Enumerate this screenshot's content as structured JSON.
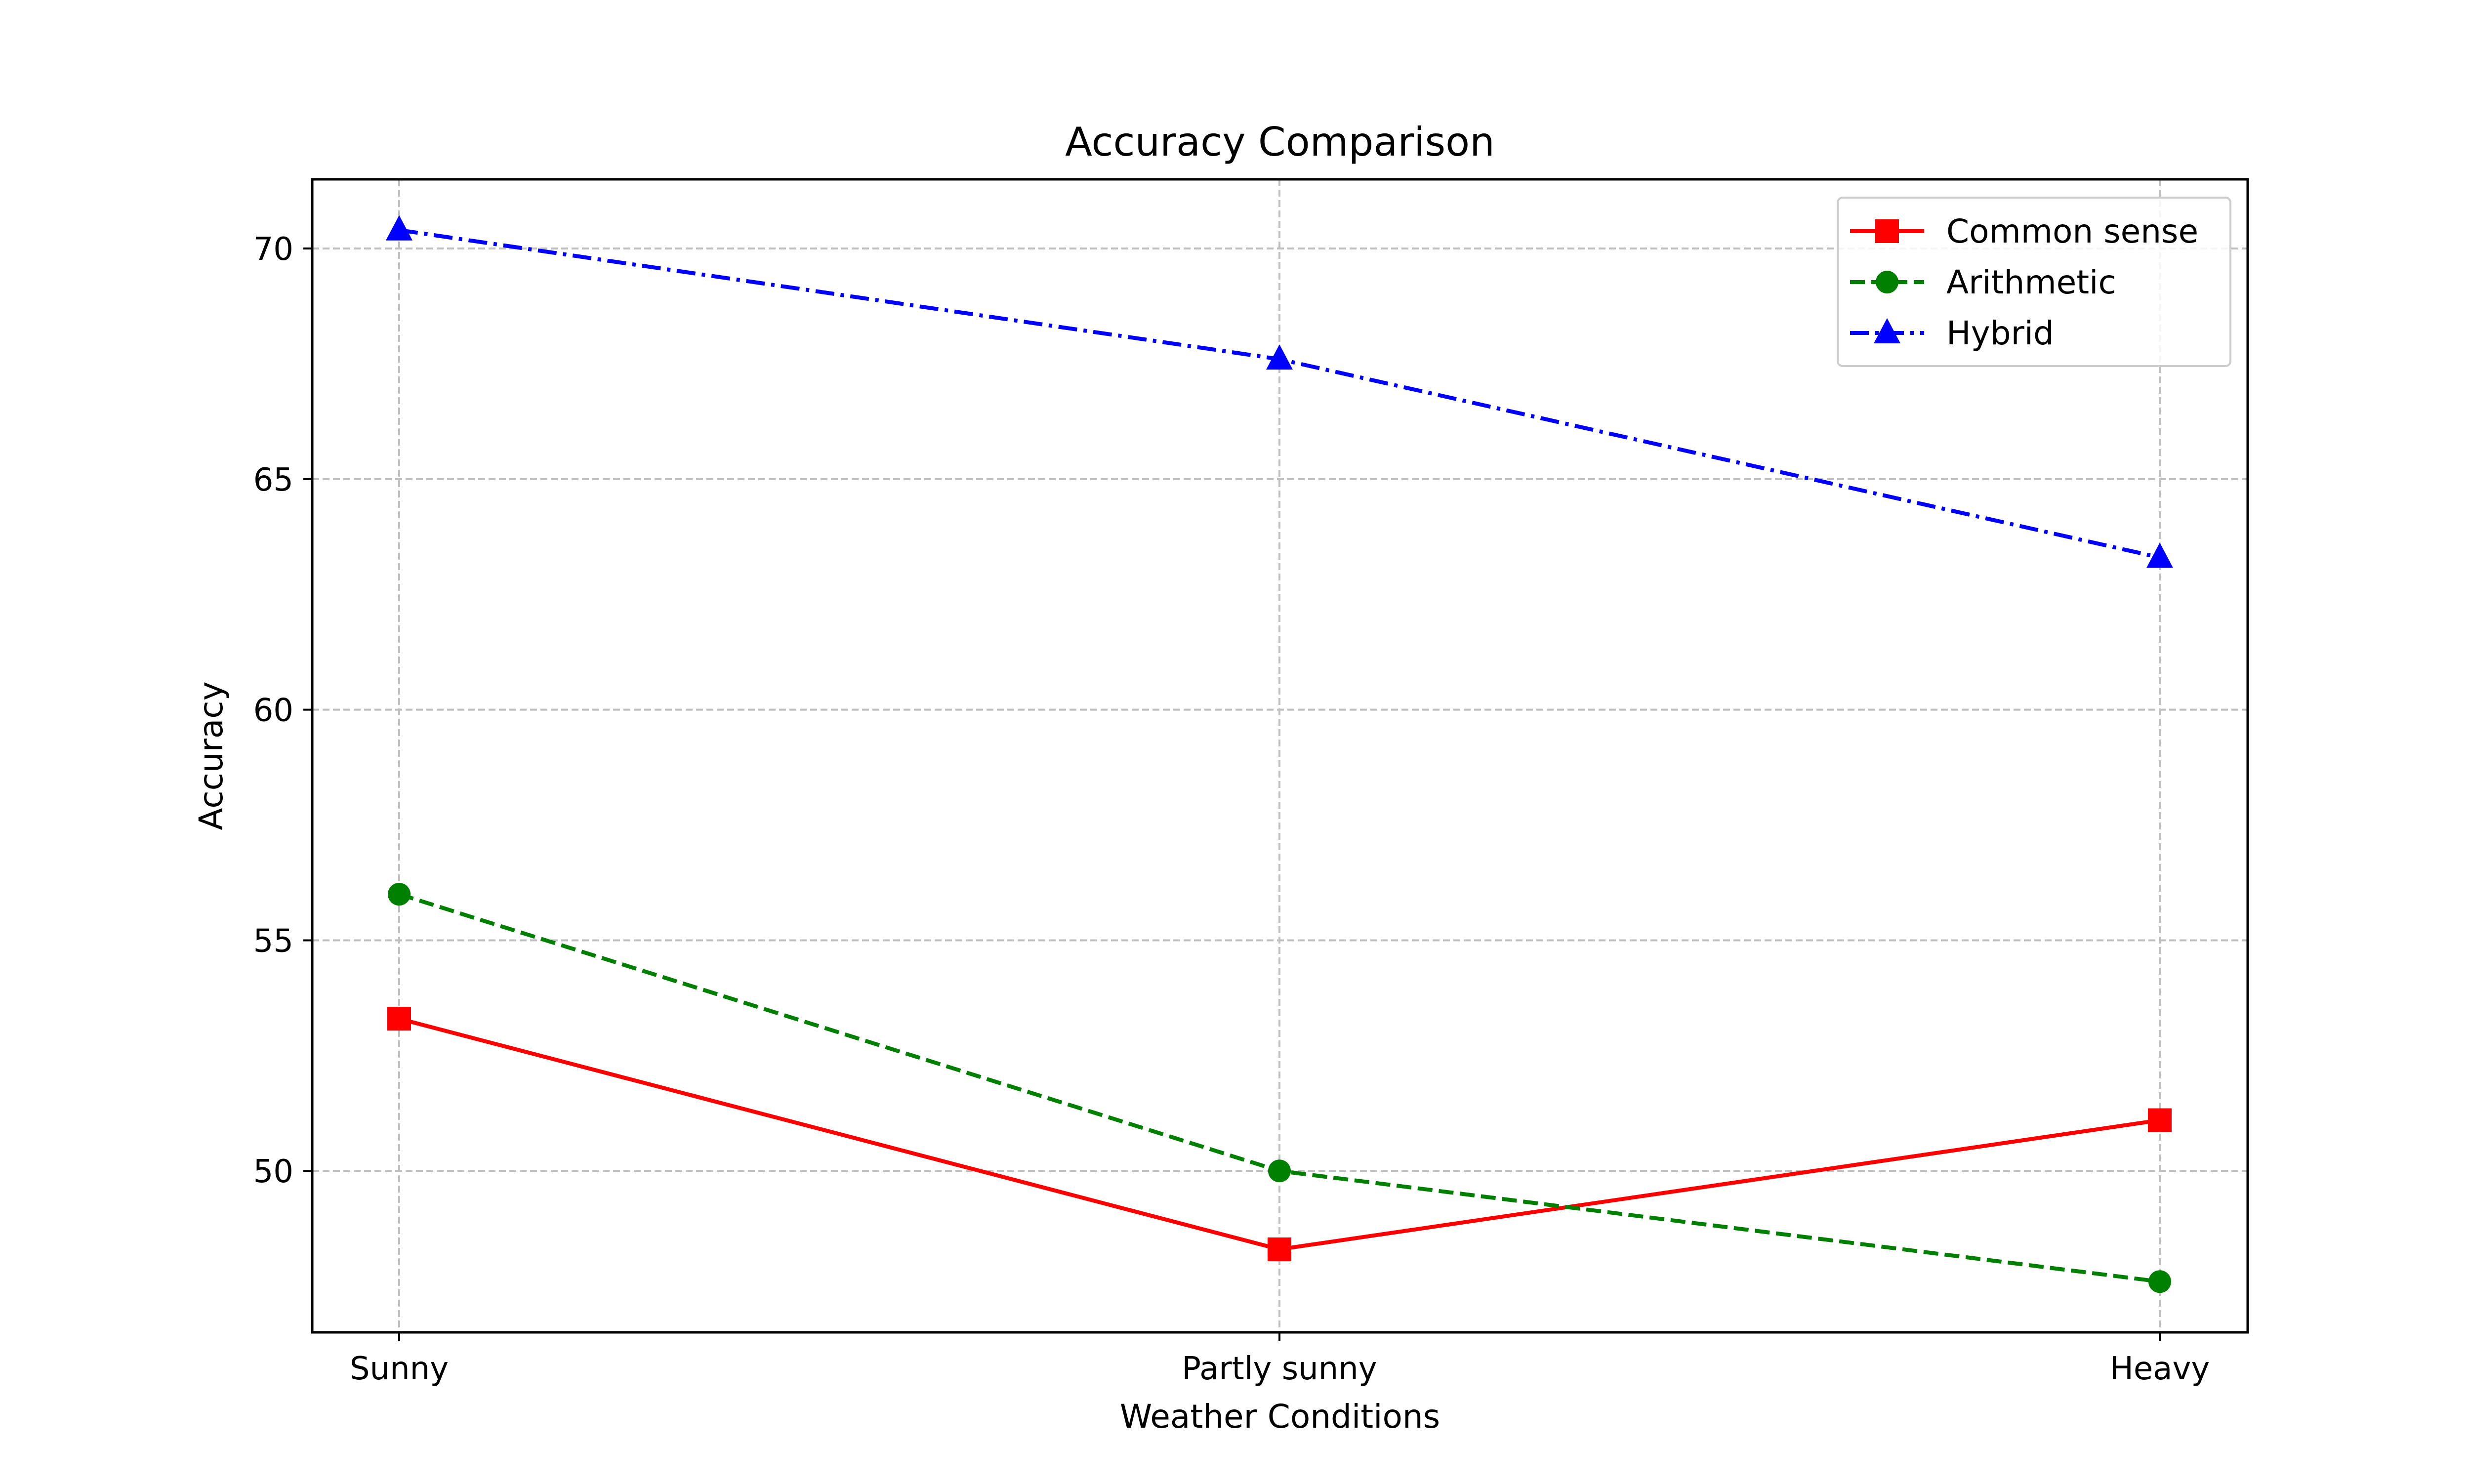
{
  "chart_data": {
    "type": "line",
    "title": "Accuracy Comparison",
    "xlabel": "Weather Conditions",
    "ylabel": "Accuracy",
    "categories": [
      "Sunny",
      "Partly sunny",
      "Heavy"
    ],
    "ylim": [
      46.5,
      71.5
    ],
    "yticks": [
      50,
      55,
      60,
      65,
      70
    ],
    "grid": true,
    "legend_position": "top-right",
    "series": [
      {
        "name": "Common sense",
        "values": [
          53.3,
          48.3,
          51.1
        ],
        "color": "#ff0000",
        "line_style": "solid",
        "marker": "square"
      },
      {
        "name": "Arithmetic",
        "values": [
          56.0,
          50.0,
          47.6
        ],
        "color": "#008000",
        "line_style": "dashed",
        "marker": "circle"
      },
      {
        "name": "Hybrid",
        "values": [
          70.4,
          67.6,
          63.3
        ],
        "color": "#0000ff",
        "line_style": "dash-dot",
        "marker": "triangle"
      }
    ]
  }
}
